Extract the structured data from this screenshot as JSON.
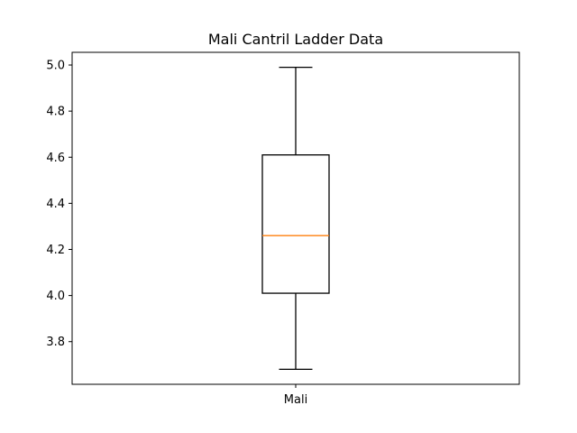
{
  "chart_data": {
    "type": "box",
    "title": "Mali Cantril Ladder Data",
    "xlabel": "",
    "ylabel": "",
    "categories": [
      "Mali"
    ],
    "boxes": [
      {
        "category": "Mali",
        "whisker_low": 3.68,
        "q1": 4.01,
        "median": 4.26,
        "q3": 4.61,
        "whisker_high": 4.99
      }
    ],
    "ylim": [
      3.615,
      5.055
    ],
    "yticks": [
      3.8,
      4.0,
      4.2,
      4.4,
      4.6,
      4.8,
      5.0
    ],
    "ytick_labels": [
      "3.8",
      "4.0",
      "4.2",
      "4.4",
      "4.6",
      "4.8",
      "5.0"
    ],
    "grid": false,
    "legend": "none",
    "colors": {
      "box": "#000000",
      "median": "#ff7f0e",
      "axes": "#000000"
    }
  }
}
